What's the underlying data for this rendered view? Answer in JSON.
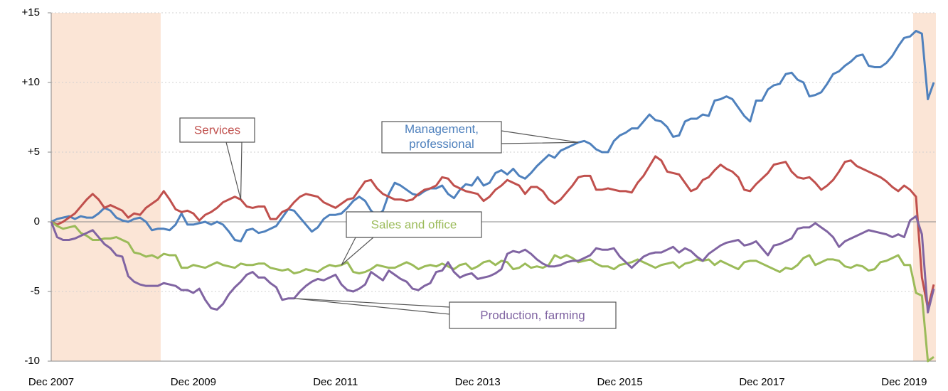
{
  "chart_data": {
    "type": "line",
    "categories": [
      "Dec 2007",
      null,
      null,
      null,
      null,
      null,
      null,
      null,
      null,
      null,
      null,
      null,
      null,
      null,
      null,
      null,
      null,
      null,
      null,
      null,
      null,
      null,
      null,
      null,
      "Dec 2009",
      null,
      null,
      null,
      null,
      null,
      null,
      null,
      null,
      null,
      null,
      null,
      null,
      null,
      null,
      null,
      null,
      null,
      null,
      null,
      null,
      null,
      null,
      null,
      "Dec 2011",
      null,
      null,
      null,
      null,
      null,
      null,
      null,
      null,
      null,
      null,
      null,
      null,
      null,
      null,
      null,
      null,
      null,
      null,
      null,
      null,
      null,
      null,
      null,
      "Dec 2013",
      null,
      null,
      null,
      null,
      null,
      null,
      null,
      null,
      null,
      null,
      null,
      null,
      null,
      null,
      null,
      null,
      null,
      null,
      null,
      null,
      null,
      null,
      null,
      "Dec 2015",
      null,
      null,
      null,
      null,
      null,
      null,
      null,
      null,
      null,
      null,
      null,
      null,
      null,
      null,
      null,
      null,
      null,
      null,
      null,
      null,
      null,
      null,
      null,
      "Dec 2017",
      null,
      null,
      null,
      null,
      null,
      null,
      null,
      null,
      null,
      null,
      null,
      null,
      null,
      null,
      null,
      null,
      null,
      null,
      null,
      null,
      null,
      null,
      null,
      "Dec 2019",
      null,
      null,
      null,
      null,
      null
    ],
    "ylim": [
      -10,
      15
    ],
    "yticks": [
      {
        "value": 15,
        "label": "+15"
      },
      {
        "value": 10,
        "label": "+10"
      },
      {
        "value": 5,
        "label": "+5"
      },
      0,
      -5,
      -10
    ],
    "grid": true,
    "shaded": [
      [
        0,
        18
      ],
      [
        146,
        149
      ]
    ],
    "shade_color": "#fbe5d6",
    "series": [
      {
        "name": "Management, professional",
        "color": "#4f81bd",
        "values": [
          0,
          0.2,
          0.3,
          0.4,
          0.2,
          0.4,
          0.3,
          0.3,
          0.6,
          1.0,
          0.8,
          0.3,
          0.1,
          0,
          0.2,
          0.3,
          0,
          -0.6,
          -0.5,
          -0.5,
          -0.6,
          -0.2,
          0.6,
          -0.2,
          -0.2,
          -0.1,
          0,
          -0.2,
          0,
          -0.2,
          -0.7,
          -1.3,
          -1.4,
          -0.6,
          -0.5,
          -0.8,
          -0.7,
          -0.5,
          -0.3,
          0.3,
          0.9,
          0.8,
          0.3,
          -0.2,
          -0.7,
          -0.4,
          0.2,
          0.5,
          0.5,
          0.6,
          1.0,
          1.5,
          1.8,
          1.5,
          0.8,
          0.4,
          0.8,
          2.0,
          2.8,
          2.6,
          2.3,
          2.0,
          1.9,
          2.2,
          2.4,
          2.4,
          2.6,
          2.0,
          1.7,
          2.3,
          2.7,
          2.6,
          3.2,
          2.6,
          2.8,
          3.5,
          3.7,
          3.4,
          3.8,
          3.3,
          3.1,
          3.5,
          4.0,
          4.4,
          4.8,
          4.6,
          5.1,
          5.3,
          5.5,
          5.7,
          5.8,
          5.6,
          5.2,
          5.0,
          5.0,
          5.8,
          6.2,
          6.4,
          6.7,
          6.7,
          7.2,
          7.7,
          7.3,
          7.2,
          6.8,
          6.1,
          6.2,
          7.2,
          7.4,
          7.4,
          7.7,
          7.6,
          8.7,
          8.8,
          9.0,
          8.8,
          8.2,
          7.6,
          7.2,
          8.7,
          8.7,
          9.5,
          9.8,
          9.9,
          10.6,
          10.7,
          10.2,
          10.0,
          9.0,
          9.1,
          9.3,
          9.9,
          10.6,
          10.8,
          11.2,
          11.5,
          11.9,
          12.0,
          11.2,
          11.1,
          11.1,
          11.4,
          11.9,
          12.6,
          13.2,
          13.3,
          13.7,
          13.5,
          8.8,
          10.0
        ]
      },
      {
        "name": "Services",
        "color": "#c0504d",
        "values": [
          0,
          -0.2,
          0,
          0.3,
          0.6,
          1.1,
          1.6,
          2.0,
          1.6,
          1.0,
          1.2,
          1.0,
          0.8,
          0.3,
          0.6,
          0.5,
          1.0,
          1.3,
          1.6,
          2.2,
          1.6,
          0.9,
          0.7,
          0.8,
          0.6,
          0.1,
          0.5,
          0.7,
          1.0,
          1.4,
          1.6,
          1.8,
          1.6,
          1.1,
          1.0,
          1.1,
          1.1,
          0.2,
          0.2,
          0.7,
          0.9,
          1.4,
          1.8,
          2.0,
          1.9,
          1.8,
          1.4,
          1.2,
          1.0,
          1.3,
          1.6,
          1.7,
          2.3,
          2.9,
          3.0,
          2.4,
          2.0,
          1.8,
          1.6,
          1.6,
          1.5,
          1.6,
          2.0,
          2.3,
          2.4,
          2.6,
          3.2,
          3.1,
          2.6,
          2.4,
          2.2,
          2.1,
          2.0,
          1.5,
          1.8,
          2.3,
          2.6,
          3.0,
          2.8,
          2.6,
          2.0,
          2.5,
          2.5,
          2.2,
          1.6,
          1.3,
          1.6,
          2.1,
          2.6,
          3.2,
          3.3,
          3.3,
          2.3,
          2.3,
          2.4,
          2.3,
          2.2,
          2.2,
          2.1,
          2.8,
          3.3,
          4.0,
          4.7,
          4.4,
          3.6,
          3.5,
          3.4,
          2.8,
          2.2,
          2.4,
          3.0,
          3.2,
          3.7,
          4.1,
          3.8,
          3.6,
          3.2,
          2.3,
          2.2,
          2.7,
          3.1,
          3.5,
          4.1,
          4.2,
          4.3,
          3.6,
          3.2,
          3.1,
          3.2,
          2.8,
          2.3,
          2.6,
          3.0,
          3.6,
          4.3,
          4.4,
          4.0,
          3.8,
          3.6,
          3.4,
          3.2,
          2.9,
          2.5,
          2.2,
          2.6,
          2.3,
          1.8,
          -4.0,
          -6.2,
          -4.5
        ]
      },
      {
        "name": "Sales and office",
        "color": "#9bbb59",
        "values": [
          0,
          -0.3,
          -0.5,
          -0.4,
          -0.3,
          -0.8,
          -1.0,
          -1.3,
          -1.3,
          -1.2,
          -1.2,
          -1.1,
          -1.3,
          -1.5,
          -2.2,
          -2.3,
          -2.5,
          -2.4,
          -2.6,
          -2.3,
          -2.4,
          -2.4,
          -3.3,
          -3.3,
          -3.1,
          -3.2,
          -3.3,
          -3.1,
          -2.9,
          -3.1,
          -3.2,
          -3.3,
          -3.0,
          -3.1,
          -3.1,
          -3.0,
          -3.0,
          -3.3,
          -3.4,
          -3.5,
          -3.4,
          -3.7,
          -3.6,
          -3.4,
          -3.5,
          -3.6,
          -3.3,
          -3.1,
          -3.2,
          -3.1,
          -2.9,
          -3.6,
          -3.7,
          -3.6,
          -3.4,
          -3.1,
          -3.2,
          -3.3,
          -3.3,
          -3.1,
          -2.9,
          -3.1,
          -3.4,
          -3.2,
          -3.1,
          -3.2,
          -3.0,
          -3.2,
          -3.4,
          -3.1,
          -3.0,
          -3.4,
          -3.2,
          -2.9,
          -2.8,
          -3.1,
          -2.8,
          -2.9,
          -3.4,
          -3.3,
          -3.0,
          -3.3,
          -3.2,
          -3.3,
          -3.1,
          -2.4,
          -2.6,
          -2.4,
          -2.6,
          -2.9,
          -2.8,
          -2.7,
          -3.0,
          -3.2,
          -3.2,
          -3.4,
          -3.1,
          -3.0,
          -2.9,
          -2.7,
          -2.9,
          -3.1,
          -3.3,
          -3.1,
          -3.0,
          -2.9,
          -3.3,
          -3.0,
          -2.9,
          -2.7,
          -2.8,
          -2.7,
          -3.1,
          -2.8,
          -3.0,
          -3.2,
          -3.4,
          -2.9,
          -2.8,
          -2.8,
          -3.0,
          -3.2,
          -3.4,
          -3.6,
          -3.3,
          -3.4,
          -3.1,
          -2.6,
          -2.4,
          -3.1,
          -2.9,
          -2.7,
          -2.7,
          -2.8,
          -3.2,
          -3.3,
          -3.1,
          -3.2,
          -3.5,
          -3.4,
          -2.9,
          -2.8,
          -2.6,
          -2.4,
          -3.1,
          -3.1,
          -5.1,
          -5.3,
          -10.0,
          -9.7
        ]
      },
      {
        "name": "Production, farming",
        "color": "#8064a2",
        "values": [
          0,
          -1.1,
          -1.3,
          -1.3,
          -1.2,
          -1.0,
          -0.8,
          -0.6,
          -1.1,
          -1.6,
          -1.9,
          -2.4,
          -2.5,
          -3.9,
          -4.3,
          -4.5,
          -4.6,
          -4.6,
          -4.6,
          -4.4,
          -4.5,
          -4.6,
          -4.9,
          -4.9,
          -5.1,
          -4.8,
          -5.6,
          -6.2,
          -6.3,
          -5.9,
          -5.2,
          -4.7,
          -4.3,
          -3.8,
          -3.6,
          -4.0,
          -4.0,
          -4.4,
          -4.7,
          -5.6,
          -5.5,
          -5.5,
          -5.0,
          -4.6,
          -4.3,
          -4.1,
          -4.2,
          -4.0,
          -3.8,
          -4.5,
          -4.9,
          -5.0,
          -4.8,
          -4.5,
          -3.6,
          -3.9,
          -4.2,
          -3.5,
          -3.8,
          -4.1,
          -4.3,
          -4.8,
          -4.9,
          -4.6,
          -4.4,
          -3.6,
          -3.5,
          -2.9,
          -3.6,
          -4.0,
          -3.8,
          -3.7,
          -4.1,
          -4.0,
          -3.9,
          -3.7,
          -3.4,
          -2.3,
          -2.1,
          -2.2,
          -2.0,
          -2.3,
          -2.7,
          -3.0,
          -3.2,
          -3.2,
          -3.1,
          -2.9,
          -2.8,
          -2.8,
          -2.6,
          -2.4,
          -1.9,
          -2.0,
          -2.0,
          -1.9,
          -2.5,
          -2.9,
          -3.3,
          -2.9,
          -2.5,
          -2.3,
          -2.2,
          -2.2,
          -2.0,
          -1.8,
          -2.2,
          -1.9,
          -2.1,
          -2.5,
          -2.8,
          -2.3,
          -2.0,
          -1.7,
          -1.5,
          -1.4,
          -1.3,
          -1.7,
          -1.6,
          -1.4,
          -1.9,
          -2.4,
          -1.7,
          -1.6,
          -1.4,
          -1.2,
          -0.5,
          -0.4,
          -0.4,
          -0.1,
          -0.4,
          -0.7,
          -1.1,
          -1.8,
          -1.4,
          -1.2,
          -1.0,
          -0.8,
          -0.6,
          -0.7,
          -0.8,
          -0.9,
          -1.1,
          -0.9,
          -1.1,
          0.1,
          0.4,
          -0.9,
          -6.5,
          -4.8
        ]
      }
    ]
  }
}
